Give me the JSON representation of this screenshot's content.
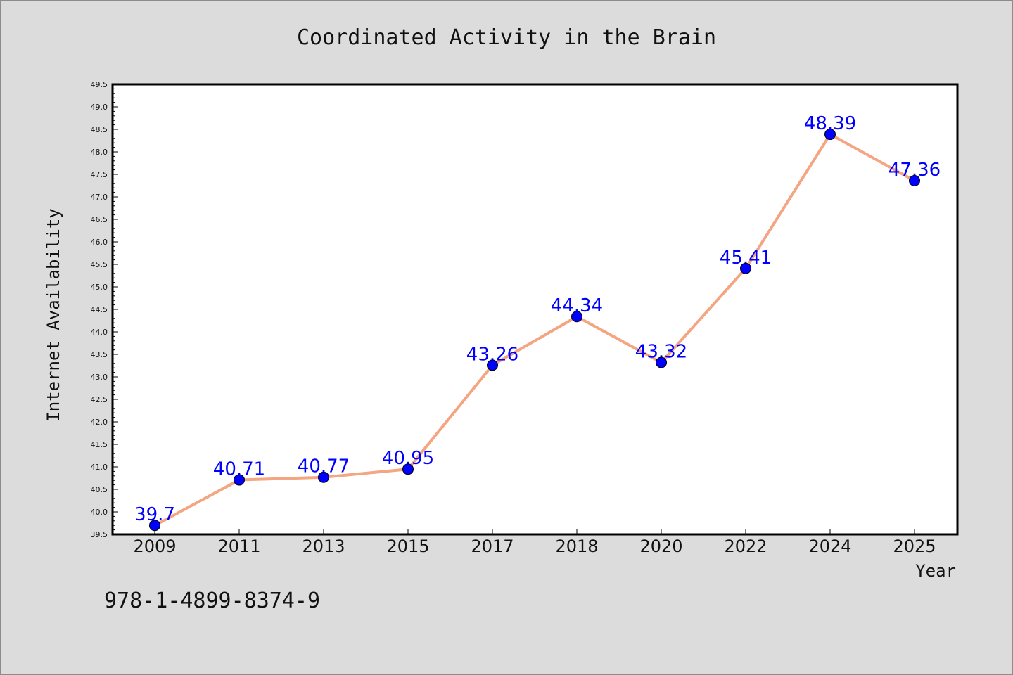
{
  "chart_data": {
    "type": "line",
    "title": "Coordinated Activity in the Brain",
    "xlabel": "Year",
    "ylabel": "Internet Availability",
    "categories": [
      "2009",
      "2011",
      "2013",
      "2015",
      "2017",
      "2018",
      "2020",
      "2022",
      "2024",
      "2025"
    ],
    "series": [
      {
        "values": [
          39.7,
          40.71,
          40.77,
          40.95,
          43.26,
          44.34,
          43.32,
          45.41,
          48.39,
          47.36
        ]
      }
    ],
    "data_labels": [
      "39.7",
      "40.71",
      "40.77",
      "40.95",
      "43.26",
      "44.34",
      "43.32",
      "45.41",
      "48.39",
      "47.36"
    ],
    "ylim": [
      39.5,
      49.5
    ],
    "yticks": [
      "39.5",
      "40.0",
      "40.5",
      "41.0",
      "41.5",
      "42.0",
      "42.5",
      "43.0",
      "43.5",
      "44.0",
      "44.5",
      "45.0",
      "45.5",
      "46.0",
      "46.5",
      "47.0",
      "47.5",
      "48.0",
      "48.5",
      "49.0",
      "49.5"
    ],
    "grid": false,
    "colors": {
      "line": "#f4a582",
      "marker": "#0000ff",
      "label": "#0000ff",
      "background": "#dcdcdc",
      "plot_area": "#ffffff"
    }
  },
  "footnote": "978-1-4899-8374-9"
}
